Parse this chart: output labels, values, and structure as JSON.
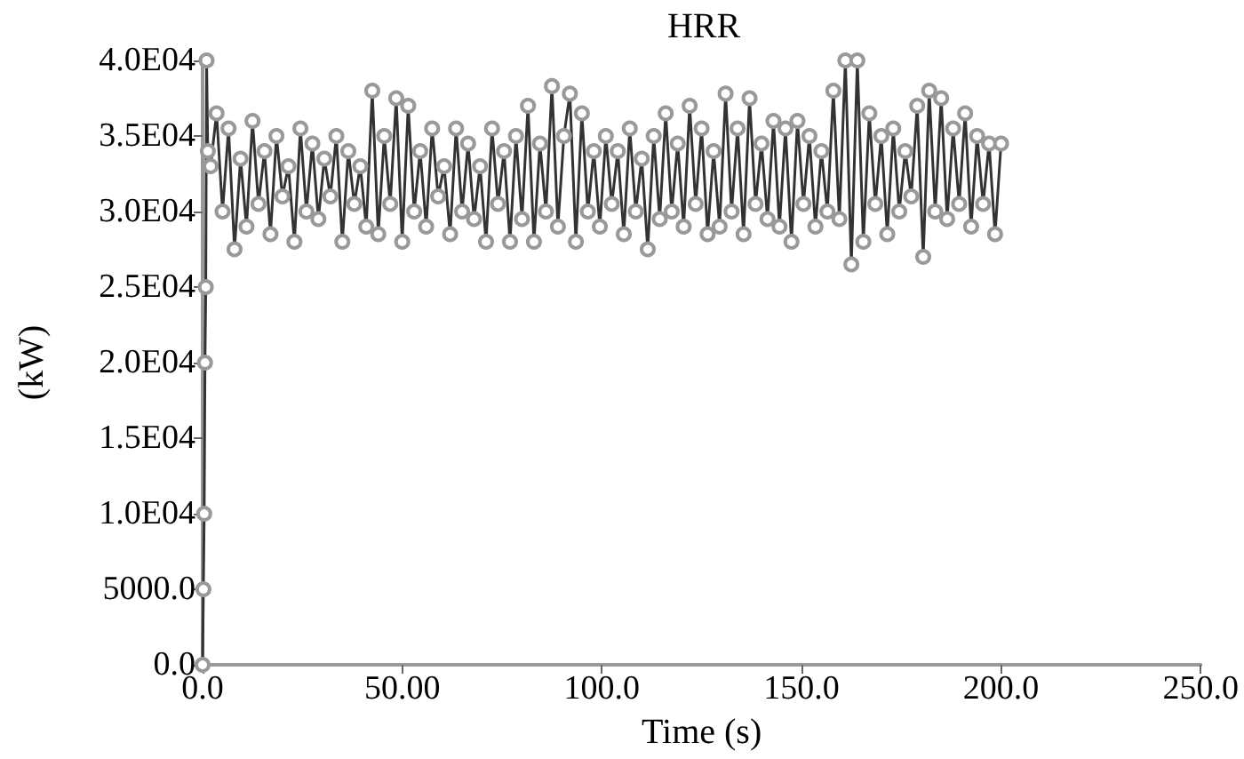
{
  "chart_data": {
    "type": "line",
    "title": "HRR",
    "xlabel": "Time (s)",
    "ylabel": "(kW)",
    "xlim": [
      0,
      250
    ],
    "xticks": [
      {
        "value": 0,
        "label": "0.0"
      },
      {
        "value": 50,
        "label": "50.00"
      },
      {
        "value": 100,
        "label": "100.0"
      },
      {
        "value": 150,
        "label": "150.0"
      },
      {
        "value": 200,
        "label": "200.0"
      },
      {
        "value": 250,
        "label": "250.0"
      }
    ],
    "ylim": [
      0,
      40000
    ],
    "yticks": [
      {
        "value": 0,
        "label": "0.0"
      },
      {
        "value": 5000,
        "label": "5000.0"
      },
      {
        "value": 10000,
        "label": "1.0E04"
      },
      {
        "value": 15000,
        "label": "1.5E04"
      },
      {
        "value": 20000,
        "label": "2.0E04"
      },
      {
        "value": 25000,
        "label": "2.5E04"
      },
      {
        "value": 30000,
        "label": "3.0E04"
      },
      {
        "value": 35000,
        "label": "3.5E04"
      },
      {
        "value": 40000,
        "label": "4.0E04"
      }
    ],
    "grid": false,
    "marker": "circle",
    "line_style": "solid",
    "series": [
      {
        "color": "#333333",
        "x": [
          0,
          0.2,
          0.4,
          0.6,
          0.8,
          1,
          1.3,
          2,
          3.5,
          5,
          6.5,
          8,
          9.5,
          11,
          12.5,
          14,
          15.5,
          17,
          18.5,
          20,
          21.5,
          23,
          24.5,
          26,
          27.5,
          29,
          30.5,
          32,
          33.5,
          35,
          36.5,
          38,
          39.5,
          41,
          42.5,
          44,
          45.5,
          47,
          48.5,
          50,
          51.5,
          53,
          54.5,
          56,
          57.5,
          59,
          60.5,
          62,
          63.5,
          65,
          66.5,
          68,
          69.5,
          71,
          72.5,
          74,
          75.5,
          77,
          78.5,
          80,
          81.5,
          83,
          84.5,
          86,
          87.5,
          89,
          90.5,
          92,
          93.5,
          95,
          96.5,
          98,
          99.5,
          101,
          102.5,
          104,
          105.5,
          107,
          108.5,
          110,
          111.5,
          113,
          114.5,
          116,
          117.5,
          119,
          120.5,
          122,
          123.5,
          125,
          126.5,
          128,
          129.5,
          131,
          132.5,
          134,
          135.5,
          137,
          138.5,
          140,
          141.5,
          143,
          144.5,
          146,
          147.5,
          149,
          150.5,
          152,
          153.5,
          155,
          156.5,
          158,
          159.5,
          161,
          162.5,
          164,
          165.5,
          167,
          168.5,
          170,
          171.5,
          173,
          174.5,
          176,
          177.5,
          179,
          180.5,
          182,
          183.5,
          185,
          186.5,
          188,
          189.5,
          191,
          192.5,
          194,
          195.5,
          197,
          198.5,
          200
        ],
        "values": [
          0,
          5000,
          10000,
          20000,
          25000,
          40000,
          34000,
          33000,
          36500,
          30000,
          35500,
          27500,
          33500,
          29000,
          36000,
          30500,
          34000,
          28500,
          35000,
          31000,
          33000,
          28000,
          35500,
          30000,
          34500,
          29500,
          33500,
          31000,
          35000,
          28000,
          34000,
          30500,
          33000,
          29000,
          38000,
          28500,
          35000,
          30500,
          37500,
          28000,
          37000,
          30000,
          34000,
          29000,
          35500,
          31000,
          33000,
          28500,
          35500,
          30000,
          34500,
          29500,
          33000,
          28000,
          35500,
          30500,
          34000,
          28000,
          35000,
          29500,
          37000,
          28000,
          34500,
          30000,
          38300,
          29000,
          35000,
          37800,
          28000,
          36500,
          30000,
          34000,
          29000,
          35000,
          30500,
          34000,
          28500,
          35500,
          30000,
          33500,
          27500,
          35000,
          29500,
          36500,
          30000,
          34500,
          29000,
          37000,
          30500,
          35500,
          28500,
          34000,
          29000,
          37800,
          30000,
          35500,
          28500,
          37500,
          30500,
          34500,
          29500,
          36000,
          29000,
          35500,
          28000,
          36000,
          30500,
          35000,
          29000,
          34000,
          30000,
          38000,
          29500,
          40000,
          26500,
          40000,
          28000,
          36500,
          30500,
          35000,
          28500,
          35500,
          30000,
          34000,
          31000,
          37000,
          27000,
          38000,
          30000,
          37500,
          29500,
          35500,
          30500,
          36500,
          29000,
          35000,
          30500,
          34500,
          28500,
          34500
        ]
      }
    ]
  }
}
